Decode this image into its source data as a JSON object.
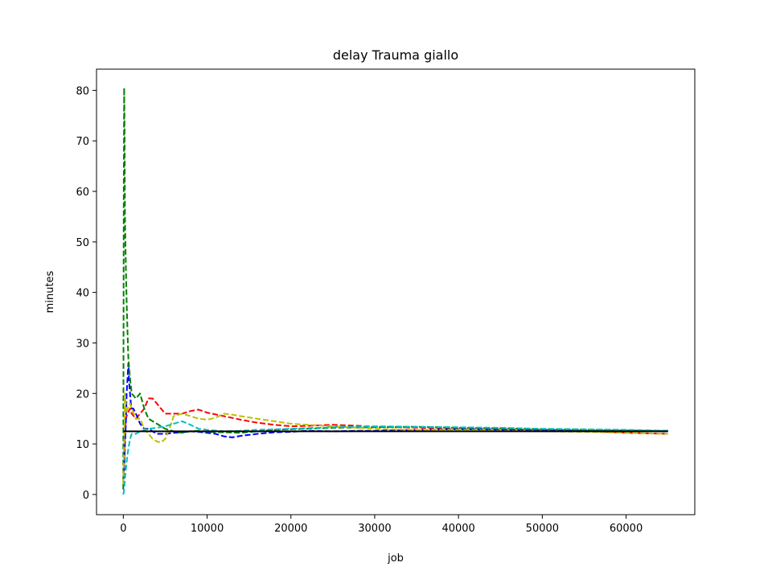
{
  "chart_data": {
    "type": "line",
    "title": "delay Trauma giallo",
    "xlabel": "job",
    "ylabel": "minutes",
    "xlim": [
      -3200,
      68200
    ],
    "ylim": [
      -4,
      84.2
    ],
    "xticks": [
      0,
      10000,
      20000,
      30000,
      40000,
      50000,
      60000
    ],
    "xtick_labels": [
      "0",
      "10000",
      "20000",
      "30000",
      "40000",
      "50000",
      "60000"
    ],
    "yticks": [
      0,
      10,
      20,
      30,
      40,
      50,
      60,
      70,
      80
    ],
    "ytick_labels": [
      "0",
      "10",
      "20",
      "30",
      "40",
      "50",
      "60",
      "70",
      "80"
    ],
    "grid": false,
    "series": [
      {
        "color": "#ff0000",
        "style": "dashed",
        "x": [
          0,
          100,
          200,
          300,
          500,
          800,
          1000,
          1500,
          2000,
          2500,
          3000,
          3500,
          4000,
          4500,
          5000,
          6000,
          7000,
          8000,
          9000,
          10000,
          12000,
          14000,
          16000,
          18000,
          20000,
          22000,
          25000,
          28000,
          30000,
          33000,
          36000,
          40000,
          45000,
          50000,
          55000,
          60000,
          65000
        ],
        "y": [
          2,
          6,
          12,
          15,
          16,
          17,
          16,
          15,
          16,
          17,
          19,
          19,
          18,
          17,
          16,
          16,
          16,
          16.5,
          16.8,
          16.2,
          15.5,
          14.8,
          14.2,
          13.8,
          13.5,
          13.6,
          13.8,
          13.6,
          13.4,
          13.3,
          13.2,
          13,
          12.9,
          12.8,
          12.6,
          12.2,
          12
        ]
      },
      {
        "color": "#0000ff",
        "style": "dashed",
        "x": [
          0,
          100,
          200,
          300,
          400,
          500,
          600,
          700,
          800,
          900,
          1000,
          1200,
          1500,
          2000,
          2500,
          3000,
          3500,
          4000,
          5000,
          6000,
          7000,
          8000,
          9000,
          10000,
          11000,
          12000,
          13000,
          14000,
          15000,
          16000,
          18000,
          20000,
          22000,
          25000,
          28000,
          30000,
          35000,
          40000,
          45000,
          50000,
          55000,
          60000,
          65000
        ],
        "y": [
          3,
          5,
          10,
          14,
          20,
          23,
          26,
          22,
          20,
          18,
          17,
          17,
          16,
          14,
          13,
          13,
          12.5,
          12,
          12,
          12.2,
          12.3,
          12.5,
          12.4,
          12.2,
          12,
          11.5,
          11.3,
          11.6,
          11.8,
          12,
          12.3,
          12.4,
          12.6,
          12.5,
          12.6,
          12.6,
          12.8,
          12.9,
          12.8,
          12.7,
          12.6,
          12.6,
          12.6
        ]
      },
      {
        "color": "#008000",
        "style": "dashed",
        "x": [
          0,
          50,
          100,
          150,
          200,
          250,
          300,
          400,
          500,
          600,
          800,
          1000,
          1500,
          2000,
          2500,
          3000,
          4000,
          5000,
          6000,
          7000,
          8000,
          9000,
          10000,
          12000,
          14000,
          16000,
          18000,
          20000,
          25000,
          30000,
          35000,
          40000,
          45000,
          50000,
          55000,
          60000,
          65000
        ],
        "y": [
          1,
          60,
          80.5,
          72,
          55,
          50,
          45,
          38,
          32,
          27,
          23,
          20,
          19,
          20,
          17,
          15,
          14,
          13,
          12.5,
          12.2,
          12.5,
          12.6,
          12.4,
          12.3,
          12.2,
          12.5,
          12.8,
          12.9,
          13.2,
          13.3,
          13.4,
          13.2,
          13.1,
          12.9,
          12.8,
          12.7,
          12.5
        ]
      },
      {
        "color": "#bfbf00",
        "style": "dashed",
        "x": [
          0,
          100,
          200,
          300,
          400,
          500,
          800,
          1000,
          1500,
          2000,
          2500,
          3000,
          3500,
          4000,
          4500,
          5000,
          5500,
          6000,
          7000,
          8000,
          9000,
          10000,
          11000,
          12000,
          13000,
          14000,
          16000,
          18000,
          20000,
          22000,
          25000,
          28000,
          30000,
          35000,
          40000,
          45000,
          50000,
          55000,
          60000,
          65000
        ],
        "y": [
          2,
          10,
          20,
          18,
          16,
          17,
          18,
          17,
          15,
          15,
          13,
          12,
          11,
          10.5,
          10.3,
          11,
          13,
          15.5,
          16,
          15.5,
          15,
          14.8,
          15.2,
          16,
          15.8,
          15.5,
          15,
          14.5,
          14,
          13.8,
          13.5,
          13.2,
          13,
          12.8,
          12.8,
          12.6,
          12.5,
          12.4,
          12.2,
          12
        ]
      },
      {
        "color": "#00bfbf",
        "style": "dashed",
        "x": [
          0,
          100,
          200,
          300,
          500,
          800,
          1000,
          1500,
          2000,
          3000,
          4000,
          5000,
          6000,
          7000,
          8000,
          9000,
          10000,
          12000,
          14000,
          16000,
          20000,
          25000,
          30000,
          35000,
          40000,
          45000,
          50000,
          55000,
          60000,
          65000
        ],
        "y": [
          0,
          1,
          3,
          5,
          8,
          11,
          12,
          12,
          12.5,
          13,
          13.2,
          13.5,
          14,
          14.5,
          13.8,
          13,
          12.8,
          12.5,
          12.6,
          12.8,
          13,
          13.3,
          13.5,
          13.4,
          13.3,
          13.2,
          13,
          12.9,
          12.8,
          12.6
        ]
      },
      {
        "color": "#000000",
        "style": "solid",
        "x": [
          0,
          65000
        ],
        "y": [
          12.5,
          12.5
        ]
      }
    ]
  }
}
